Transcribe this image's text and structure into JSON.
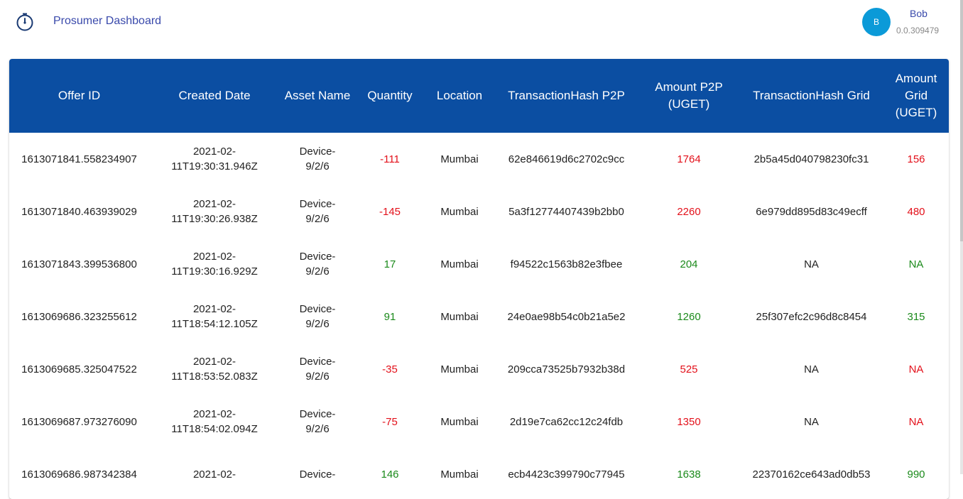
{
  "app": {
    "title": "Prosumer Dashboard",
    "icon": "speedometer-icon"
  },
  "user": {
    "initial": "B",
    "name": "Bob",
    "balance": "0.0.309479"
  },
  "colors": {
    "header_bg": "#0b4ea2",
    "positive": "#1b8a1b",
    "negative": "#e3101a",
    "title": "#3949ab",
    "avatar": "#0b9ad8"
  },
  "table": {
    "headers": [
      "Offer ID",
      "Created Date",
      "Asset Name",
      "Quantity",
      "Location",
      "TransactionHash P2P",
      "Amount P2P (UGET)",
      "TransactionHash Grid",
      "Amount Grid (UGET)"
    ],
    "rows": [
      {
        "sign": "neg",
        "offer_id": "1613071841.558234907",
        "date_line1": "2021-02-",
        "date_line2": "11T19:30:31.946Z",
        "asset_line1": "Device-",
        "asset_line2": "9/2/6",
        "quantity": "-111",
        "location": "Mumbai",
        "hash_p2p": "62e846619d6c2702c9cc",
        "amount_p2p": "1764",
        "hash_grid": "2b5a45d040798230fc31",
        "amount_grid": "156"
      },
      {
        "sign": "neg",
        "offer_id": "1613071840.463939029",
        "date_line1": "2021-02-",
        "date_line2": "11T19:30:26.938Z",
        "asset_line1": "Device-",
        "asset_line2": "9/2/6",
        "quantity": "-145",
        "location": "Mumbai",
        "hash_p2p": "5a3f12774407439b2bb0",
        "amount_p2p": "2260",
        "hash_grid": "6e979dd895d83c49ecff",
        "amount_grid": "480"
      },
      {
        "sign": "pos",
        "offer_id": "1613071843.399536800",
        "date_line1": "2021-02-",
        "date_line2": "11T19:30:16.929Z",
        "asset_line1": "Device-",
        "asset_line2": "9/2/6",
        "quantity": "17",
        "location": "Mumbai",
        "hash_p2p": "f94522c1563b82e3fbee",
        "amount_p2p": "204",
        "hash_grid": "NA",
        "amount_grid": "NA"
      },
      {
        "sign": "pos",
        "offer_id": "1613069686.323255612",
        "date_line1": "2021-02-",
        "date_line2": "11T18:54:12.105Z",
        "asset_line1": "Device-",
        "asset_line2": "9/2/6",
        "quantity": "91",
        "location": "Mumbai",
        "hash_p2p": "24e0ae98b54c0b21a5e2",
        "amount_p2p": "1260",
        "hash_grid": "25f307efc2c96d8c8454",
        "amount_grid": "315"
      },
      {
        "sign": "neg",
        "offer_id": "1613069685.325047522",
        "date_line1": "2021-02-",
        "date_line2": "11T18:53:52.083Z",
        "asset_line1": "Device-",
        "asset_line2": "9/2/6",
        "quantity": "-35",
        "location": "Mumbai",
        "hash_p2p": "209cca73525b7932b38d",
        "amount_p2p": "525",
        "hash_grid": "NA",
        "amount_grid": "NA"
      },
      {
        "sign": "neg",
        "offer_id": "1613069687.973276090",
        "date_line1": "2021-02-",
        "date_line2": "11T18:54:02.094Z",
        "asset_line1": "Device-",
        "asset_line2": "9/2/6",
        "quantity": "-75",
        "location": "Mumbai",
        "hash_p2p": "2d19e7ca62cc12c24fdb",
        "amount_p2p": "1350",
        "hash_grid": "NA",
        "amount_grid": "NA"
      },
      {
        "sign": "pos",
        "offer_id": "1613069686.987342384",
        "date_line1": "2021-02-",
        "date_line2": "",
        "asset_line1": "Device-",
        "asset_line2": "",
        "quantity": "146",
        "location": "Mumbai",
        "hash_p2p": "ecb4423c399790c77945",
        "amount_p2p": "1638",
        "hash_grid": "22370162ce643ad0db53",
        "amount_grid": "990"
      }
    ]
  }
}
